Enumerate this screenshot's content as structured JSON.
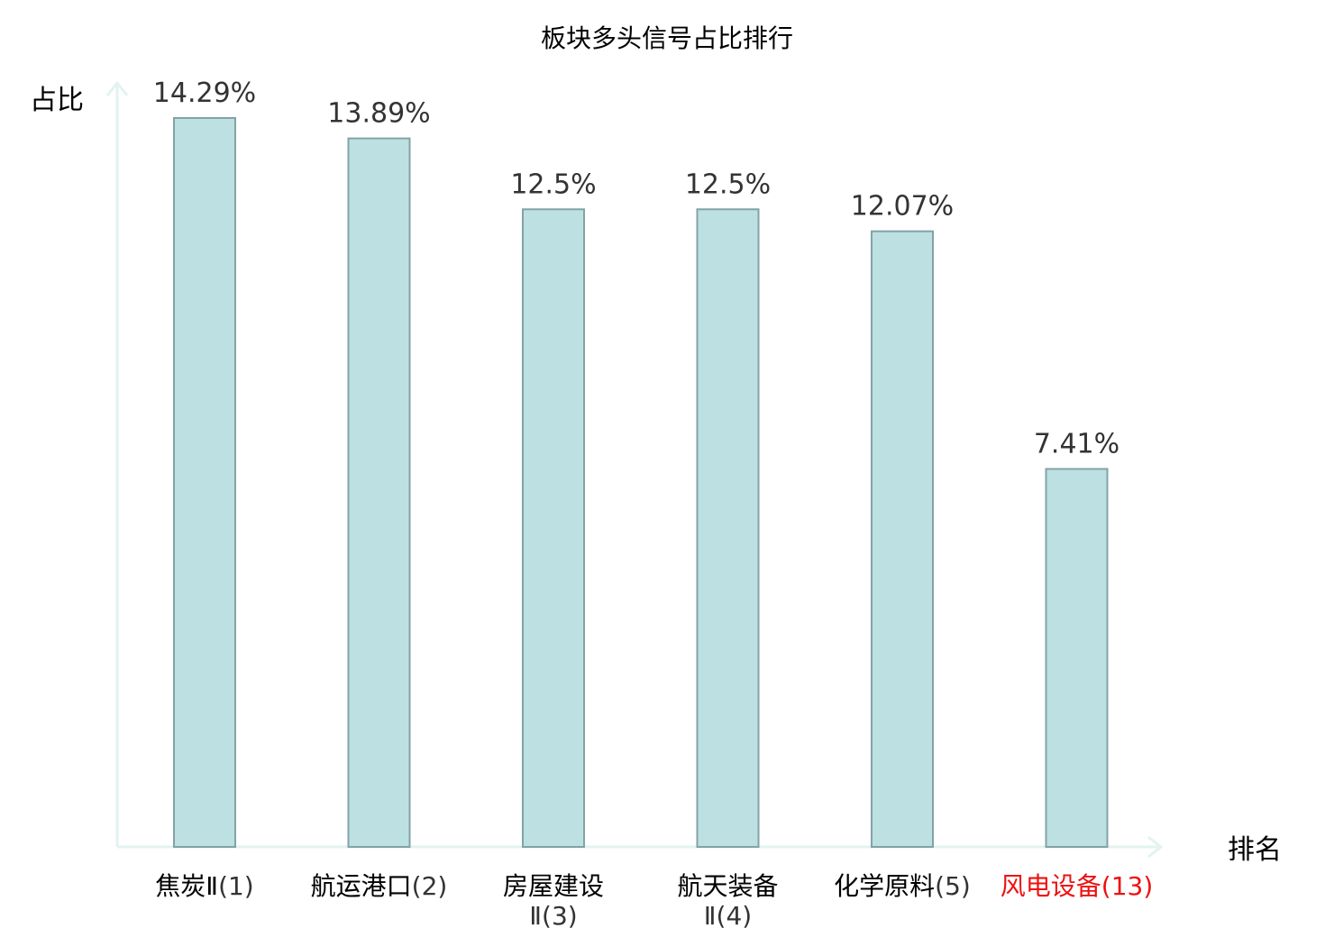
{
  "chart_data": {
    "type": "bar",
    "title": "板块多头信号占比排行",
    "xlabel": "排名",
    "ylabel": "占比",
    "categories": [
      "焦炭Ⅱ(1)",
      "航运港口(2)",
      "房屋建设Ⅱ(3)",
      "航天装备Ⅱ(4)",
      "化学原料(5)",
      "风电设备(13)"
    ],
    "category_lines": [
      [
        {
          "name": "焦炭Ⅱ",
          "rank": "(1)"
        }
      ],
      [
        {
          "name": "航运港口",
          "rank": "(2)"
        }
      ],
      [
        {
          "name": "房屋建设",
          "rank": ""
        },
        {
          "name": "",
          "rank": "Ⅱ(3)"
        }
      ],
      [
        {
          "name": "航天装备",
          "rank": ""
        },
        {
          "name": "",
          "rank": "Ⅱ(4)"
        }
      ],
      [
        {
          "name": "化学原料",
          "rank": "(5)"
        }
      ],
      [
        {
          "name": "风电设备",
          "rank": "(13)"
        }
      ]
    ],
    "values": [
      14.29,
      13.89,
      12.5,
      12.5,
      12.07,
      7.41
    ],
    "value_labels": [
      "14.29%",
      "13.89%",
      "12.5%",
      "12.5%",
      "12.07%",
      "7.41%"
    ],
    "ylim": [
      0,
      14.29
    ],
    "grid": false,
    "highlighted_category_index": 5,
    "colors": {
      "bar_fill": "#bde0e2",
      "bar_stroke": "#82a3a5",
      "axis": "#e2f3f1",
      "highlight_text": "#ee1111",
      "label_text": "#000000",
      "rank_text": "#333333",
      "value_text": "#333333"
    }
  }
}
